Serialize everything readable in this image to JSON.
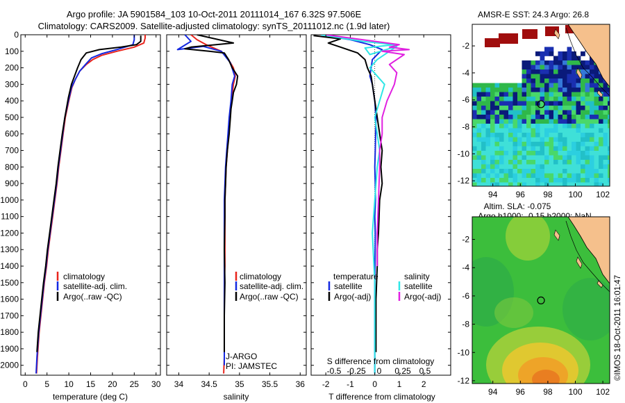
{
  "header": {
    "title_line1": "Argo profile: JA 5901584_103 10-Oct-2011 20111014_167 6.32S 97.506E",
    "title_line2": "Climatology: CARS2009. Satellite-adjusted climatology: synTS_20111012.nc (1.9d later)"
  },
  "colors": {
    "climatology": "#e8241c",
    "satellite": "#1428e0",
    "argo": "#000000",
    "satellite_s": "#2ee6e6",
    "argo_s": "#e020e0",
    "land": "#f5c08c"
  },
  "depth_ticks": [
    0,
    100,
    200,
    300,
    400,
    500,
    600,
    700,
    800,
    900,
    1000,
    1100,
    1200,
    1300,
    1400,
    1500,
    1600,
    1700,
    1800,
    1900,
    2000
  ],
  "chart_data": [
    {
      "type": "line",
      "panel": "temperature",
      "xlabel": "temperature (deg C)",
      "xlim": [
        -1,
        31
      ],
      "ylim": [
        2060,
        0
      ],
      "xticks": [
        0,
        5,
        10,
        15,
        20,
        25,
        30
      ],
      "legend": [
        "climatology",
        "satellite-adj. clim.",
        "Argo(..raw -QC)"
      ],
      "series": [
        {
          "name": "climatology",
          "color": "climatology",
          "x": [
            27.5,
            27.5,
            27.2,
            25,
            21,
            17.5,
            15.5,
            14,
            12.5,
            11.5,
            10.7,
            10,
            9.2,
            8.7,
            8.2,
            7.7,
            7.3,
            6.8,
            6.3,
            5.8,
            5.3,
            4.9,
            4.4,
            4.0,
            3.6,
            3.2,
            2.8,
            2.6
          ],
          "y": [
            0,
            20,
            50,
            75,
            100,
            125,
            150,
            180,
            220,
            270,
            320,
            400,
            500,
            600,
            700,
            800,
            900,
            1000,
            1100,
            1200,
            1300,
            1400,
            1500,
            1600,
            1700,
            1800,
            1950,
            2050
          ]
        },
        {
          "name": "satellite-adj. clim.",
          "color": "satellite",
          "x": [
            25,
            25,
            24.7,
            21,
            17.5,
            15.2,
            14,
            12.5,
            11.5,
            10.6,
            9.9,
            9.1,
            8.6,
            8.1,
            7.6,
            7.2,
            6.7,
            6.2,
            5.7,
            5.2,
            4.8,
            4.3,
            3.9,
            3.5,
            3.1,
            2.7,
            2.5
          ],
          "y": [
            0,
            30,
            60,
            90,
            115,
            140,
            175,
            220,
            270,
            320,
            400,
            500,
            600,
            700,
            800,
            900,
            1000,
            1100,
            1200,
            1300,
            1400,
            1500,
            1600,
            1700,
            1800,
            1950,
            2050
          ]
        },
        {
          "name": "Argo(..raw -QC)",
          "color": "argo",
          "x": [
            26.5,
            26.5,
            25.5,
            22,
            17,
            14,
            12.8,
            12,
            11.3,
            10.6,
            9.9,
            9.1,
            8.5,
            8.0,
            7.5,
            7.1,
            6.6,
            6.1,
            5.6,
            5.1,
            4.7,
            4.2,
            3.8,
            3.4,
            3.0,
            2.7
          ],
          "y": [
            5,
            40,
            60,
            75,
            90,
            110,
            150,
            200,
            250,
            300,
            380,
            500,
            600,
            700,
            800,
            900,
            1000,
            1100,
            1200,
            1300,
            1400,
            1500,
            1600,
            1700,
            1800,
            1920
          ]
        }
      ]
    },
    {
      "type": "line",
      "panel": "salinity",
      "xlabel": "salinity",
      "xlim": [
        33.8,
        36.1
      ],
      "ylim": [
        2060,
        0
      ],
      "xticks": [
        34,
        34.5,
        35,
        35.5,
        36
      ],
      "legend": [
        "climatology",
        "satellite-adj. clim.",
        "Argo(..raw -QC)"
      ],
      "annotations": [
        "J-ARGO",
        "PI: JAMSTEC"
      ],
      "series": [
        {
          "name": "climatology",
          "color": "climatology",
          "x": [
            34.2,
            34.3,
            34.45,
            34.7,
            34.82,
            34.9,
            34.93,
            34.9,
            34.87,
            34.84,
            34.82,
            34.8,
            34.78,
            34.77,
            34.76,
            34.76,
            34.76,
            34.75,
            34.75,
            34.75,
            34.75,
            34.74
          ],
          "y": [
            0,
            30,
            60,
            100,
            150,
            200,
            250,
            300,
            400,
            500,
            600,
            700,
            800,
            900,
            1000,
            1200,
            1400,
            1500,
            1700,
            1800,
            1950,
            2050
          ]
        },
        {
          "name": "satellite-adj. clim.",
          "color": "satellite",
          "x": [
            34.1,
            34.2,
            33.98,
            34.4,
            34.7,
            34.85,
            34.92,
            34.88,
            34.86,
            34.83,
            34.81,
            34.79,
            34.77,
            34.76,
            34.75,
            34.75,
            34.75,
            34.75,
            34.75
          ],
          "y": [
            0,
            40,
            90,
            70,
            100,
            170,
            250,
            300,
            400,
            500,
            600,
            700,
            800,
            900,
            1000,
            1200,
            1500,
            1800,
            2000
          ]
        },
        {
          "name": "Argo(..raw -QC)",
          "color": "argo",
          "x": [
            34.3,
            34.9,
            34.2,
            34.1,
            34.5,
            34.75,
            34.82,
            34.88,
            34.97,
            34.95,
            34.9,
            34.88,
            34.86,
            34.85,
            34.83,
            34.8,
            34.78,
            34.77,
            34.76,
            34.76,
            34.75,
            34.76,
            34.75,
            34.75
          ],
          "y": [
            0,
            50,
            75,
            85,
            100,
            110,
            150,
            200,
            250,
            300,
            350,
            400,
            450,
            500,
            600,
            700,
            800,
            900,
            1000,
            1100,
            1300,
            1500,
            1700,
            1920
          ]
        }
      ]
    },
    {
      "type": "line",
      "panel": "difference",
      "xlabel": "T difference from climatology",
      "top_axis_label": "S difference from climatology",
      "xlim": [
        -2.6,
        3.1
      ],
      "ylim": [
        2060,
        0
      ],
      "xticks": [
        -2,
        -1,
        0,
        1,
        2
      ],
      "top_ticks": [
        "-0.5",
        "-0.25",
        "0",
        "0.25",
        "0.5"
      ],
      "legend_headers": [
        "temperature",
        "salinity"
      ],
      "legend": [
        "satellite",
        "Argo(-adj)",
        "satellite",
        "Argo(-adj)"
      ],
      "series": [
        {
          "name": "satellite",
          "color": "satellite",
          "x": [
            -2.2,
            -1.0,
            -0.2,
            0.3,
            -0.1,
            -0.2,
            -0.1,
            0,
            0.05,
            0.02,
            0,
            0.02,
            0.03,
            0,
            0.02,
            0.01,
            0,
            0,
            0,
            0
          ],
          "y": [
            0,
            30,
            60,
            90,
            150,
            250,
            300,
            400,
            500,
            700,
            800,
            900,
            1000,
            1100,
            1200,
            1400,
            1500,
            1700,
            1900,
            2050
          ]
        },
        {
          "name": "Argo(-adj)",
          "color": "argo",
          "x": [
            -2.5,
            -1.4,
            -1.9,
            -1.4,
            -0.7,
            -0.4,
            -0.3,
            -0.15,
            -0.1,
            0,
            0.1,
            0.2,
            0.3,
            0.25,
            0.3,
            0.2,
            0.15,
            0.1,
            0.1,
            0.05,
            0.05
          ],
          "y": [
            5,
            25,
            50,
            75,
            110,
            150,
            200,
            250,
            300,
            400,
            500,
            600,
            700,
            800,
            900,
            1000,
            1200,
            1300,
            1400,
            1600,
            1920
          ]
        },
        {
          "name": "satellite S",
          "color": "satellite_s",
          "x": [
            -2.2,
            -0.5,
            0.8,
            -0.4,
            -0.2,
            0.9,
            0.6,
            0.1,
            -0.2,
            0.4,
            0.2,
            0,
            0.1,
            0.2,
            0.1,
            0,
            -0.1,
            0,
            0,
            0
          ],
          "y": [
            0,
            40,
            60,
            80,
            120,
            70,
            100,
            150,
            200,
            300,
            400,
            500,
            600,
            700,
            800,
            1000,
            1200,
            1500,
            1800,
            2050
          ]
        },
        {
          "name": "Argo(-adj) S",
          "color": "argo_s",
          "x": [
            -2.0,
            0.5,
            1.0,
            0.6,
            1.4,
            0.3,
            1.2,
            0.6,
            0.9,
            0.8,
            0.5,
            0.3,
            0.3,
            0.2,
            0.2,
            0.15,
            0.1,
            0.1
          ],
          "y": [
            0,
            50,
            60,
            75,
            90,
            100,
            120,
            180,
            230,
            300,
            400,
            500,
            600,
            700,
            800,
            1000,
            1200,
            1400
          ]
        }
      ]
    },
    {
      "type": "heatmap",
      "panel": "sst_map",
      "title": "AMSR-E SST: 24.3 Argo: 26.8",
      "xlim": [
        92.5,
        102.5
      ],
      "ylim": [
        -12.4,
        -0.4
      ],
      "xticks": [
        94,
        96,
        98,
        100,
        102
      ],
      "yticks": [
        -2,
        -4,
        -6,
        -8,
        -10,
        -12
      ],
      "argo_position": {
        "lon": 97.5,
        "lat": -6.32
      }
    },
    {
      "type": "heatmap",
      "panel": "sla_map",
      "title": "Altim. SLA: -0.075",
      "subtitle": "Argo h1000: -0.15 h2000: NaN",
      "xlim": [
        92.5,
        102.5
      ],
      "ylim": [
        -12.2,
        -0.4
      ],
      "xticks": [
        94,
        96,
        98,
        100,
        102
      ],
      "yticks": [
        -2,
        -4,
        -6,
        -8,
        -10,
        -12
      ],
      "argo_position": {
        "lon": 97.5,
        "lat": -6.32
      }
    }
  ],
  "footer": {
    "credit": "©IMOS 18-Oct-2011 16:01:47"
  }
}
